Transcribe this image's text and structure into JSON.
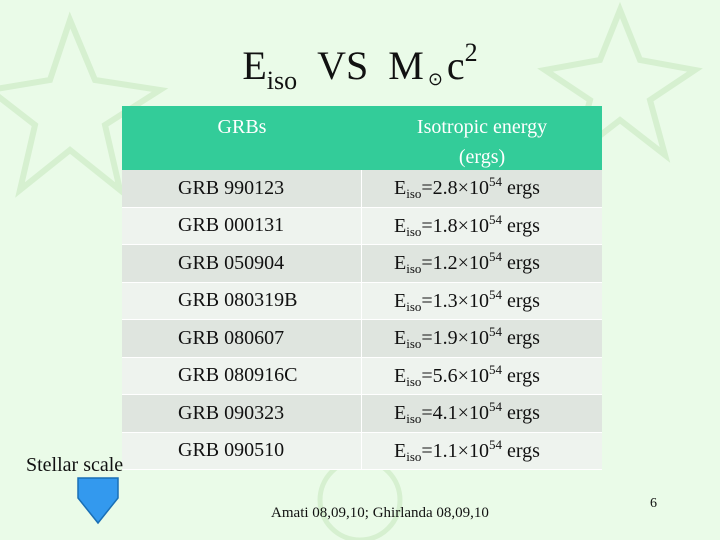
{
  "title": {
    "symbol": "E",
    "subscript": "iso",
    "connector": "VS",
    "mass": "M",
    "sun": "⊙",
    "light": "c",
    "power": "2"
  },
  "table": {
    "header": [
      "GRBs",
      "Isotropic energy (ergs)"
    ],
    "rows": [
      {
        "name": "GRB 990123",
        "symbol": "E",
        "subscript": "iso",
        "mantissa": "=2.8×10",
        "exponent": "54",
        "unit": "ergs"
      },
      {
        "name": "GRB 000131",
        "symbol": "E",
        "subscript": "iso",
        "mantissa": "=1.8×10",
        "exponent": "54",
        "unit": "ergs"
      },
      {
        "name": "GRB 050904",
        "symbol": "E",
        "subscript": "iso",
        "mantissa": "=1.2×10",
        "exponent": "54",
        "unit": "ergs"
      },
      {
        "name": "GRB 080319B",
        "symbol": "E",
        "subscript": "iso",
        "mantissa": "=1.3×10",
        "exponent": "54",
        "unit": "ergs"
      },
      {
        "name": "GRB 080607",
        "symbol": "E",
        "subscript": "iso",
        "mantissa": "=1.9×10",
        "exponent": "54",
        "unit": "ergs"
      },
      {
        "name": "GRB 080916C",
        "symbol": "E",
        "subscript": "iso",
        "mantissa": "=5.6×10",
        "exponent": "54",
        "unit": "ergs"
      },
      {
        "name": "GRB 090323",
        "symbol": "E",
        "subscript": "iso",
        "mantissa": "=4.1×10",
        "exponent": "54",
        "unit": "ergs"
      },
      {
        "name": "GRB 090510",
        "symbol": "E",
        "subscript": "iso",
        "mantissa": "=1.1×10",
        "exponent": "54",
        "unit": "ergs"
      }
    ]
  },
  "side_label": "Stellar scale",
  "reference": "Amati 08,09,10; Ghirlanda 08,09,10",
  "page_number": "6"
}
